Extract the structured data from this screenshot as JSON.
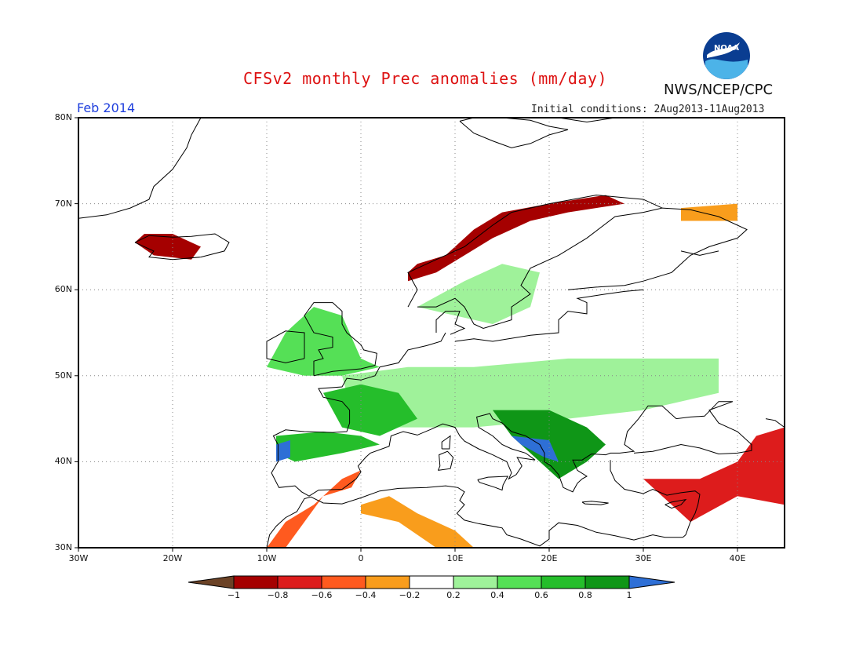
{
  "header": {
    "title": "CFSv2 monthly Prec anomalies (mm/day)",
    "org": "NWS/NCEP/CPC",
    "month": "Feb 2014",
    "init_conditions": "Initial conditions: 2Aug2013-11Aug2013",
    "logo_text": "NOAA"
  },
  "axes": {
    "lat_labels": [
      "80N",
      "70N",
      "60N",
      "50N",
      "40N",
      "30N"
    ],
    "lon_labels": [
      "30W",
      "20W",
      "10W",
      "0",
      "10E",
      "20E",
      "30E",
      "40E"
    ]
  },
  "colorbar": {
    "labels": [
      "-1",
      "-0.8",
      "-0.6",
      "-0.4",
      "-0.2",
      "0.2",
      "0.4",
      "0.6",
      "0.8",
      "1"
    ],
    "colors": [
      "#6b4226",
      "#a50000",
      "#dd1c1c",
      "#ff5a1f",
      "#f99d1c",
      "#ffffff",
      "#9ff29a",
      "#55e056",
      "#25be2b",
      "#0f9617",
      "#2e6fd6"
    ]
  },
  "map_data": {
    "extent": {
      "lon": [
        -30,
        45
      ],
      "lat": [
        30,
        80
      ]
    },
    "anomaly_regions": [
      {
        "name": "norway-coast",
        "level": "-1 to -0.6",
        "polygon": [
          [
            5,
            61
          ],
          [
            8,
            62
          ],
          [
            11,
            64
          ],
          [
            14,
            66
          ],
          [
            18,
            68
          ],
          [
            22,
            69
          ],
          [
            28,
            70
          ],
          [
            26,
            71
          ],
          [
            20,
            70
          ],
          [
            15,
            69
          ],
          [
            12,
            67
          ],
          [
            9,
            64
          ],
          [
            6,
            63
          ],
          [
            5,
            62
          ]
        ]
      },
      {
        "name": "iceland",
        "level": "-0.8",
        "polygon": [
          [
            -24,
            65.5
          ],
          [
            -22,
            64
          ],
          [
            -18,
            63.5
          ],
          [
            -17,
            65
          ],
          [
            -20,
            66.5
          ],
          [
            -23,
            66.5
          ]
        ]
      },
      {
        "name": "northern-russia",
        "level": "-0.4",
        "polygon": [
          [
            34,
            68
          ],
          [
            40,
            68
          ],
          [
            40,
            70
          ],
          [
            34,
            69.5
          ]
        ]
      },
      {
        "name": "iberia-morocco",
        "level": "-0.6 to -0.4",
        "polygon": [
          [
            -8,
            30
          ],
          [
            -6,
            33
          ],
          [
            -4,
            36
          ],
          [
            -1,
            37
          ],
          [
            0,
            39
          ],
          [
            -2,
            38
          ],
          [
            -5,
            35
          ],
          [
            -8,
            33
          ],
          [
            -10,
            30
          ]
        ]
      },
      {
        "name": "north-africa-coast",
        "level": "-0.4",
        "polygon": [
          [
            0,
            35
          ],
          [
            3,
            36
          ],
          [
            6,
            34
          ],
          [
            10,
            32
          ],
          [
            12,
            30
          ],
          [
            8,
            30
          ],
          [
            4,
            33
          ],
          [
            0,
            34
          ]
        ]
      },
      {
        "name": "turkey-caucasus",
        "level": "-0.8 to -0.4",
        "polygon": [
          [
            30,
            38
          ],
          [
            36,
            38
          ],
          [
            40,
            40
          ],
          [
            42,
            43
          ],
          [
            45,
            44
          ],
          [
            45,
            35
          ],
          [
            40,
            36
          ],
          [
            35,
            33
          ],
          [
            32,
            36
          ]
        ]
      },
      {
        "name": "scandinavia-south",
        "level": "0.2",
        "polygon": [
          [
            6,
            58
          ],
          [
            10,
            57
          ],
          [
            14,
            56
          ],
          [
            18,
            58
          ],
          [
            19,
            62
          ],
          [
            15,
            63
          ],
          [
            11,
            61
          ]
        ]
      },
      {
        "name": "british-isles",
        "level": "0.4 to 0.6",
        "polygon": [
          [
            -10,
            51
          ],
          [
            -8,
            55
          ],
          [
            -5,
            58
          ],
          [
            -2,
            57
          ],
          [
            0,
            52
          ],
          [
            2,
            51
          ],
          [
            -2,
            50
          ],
          [
            -6,
            50
          ]
        ]
      },
      {
        "name": "central-europe",
        "level": "0.2 to 0.4",
        "polygon": [
          [
            -2,
            50
          ],
          [
            5,
            51
          ],
          [
            12,
            51
          ],
          [
            22,
            52
          ],
          [
            30,
            52
          ],
          [
            38,
            52
          ],
          [
            38,
            48
          ],
          [
            30,
            46
          ],
          [
            22,
            45
          ],
          [
            12,
            44
          ],
          [
            4,
            44
          ],
          [
            -1,
            46
          ]
        ]
      },
      {
        "name": "france-west",
        "level": "0.6 to 0.8",
        "polygon": [
          [
            -4,
            48
          ],
          [
            0,
            49
          ],
          [
            4,
            48
          ],
          [
            6,
            45
          ],
          [
            2,
            43
          ],
          [
            -2,
            44
          ]
        ]
      },
      {
        "name": "iberia-north",
        "level": "0.4 to 0.8",
        "polygon": [
          [
            -9,
            43
          ],
          [
            -4,
            43.5
          ],
          [
            0,
            43
          ],
          [
            2,
            42
          ],
          [
            -2,
            41
          ],
          [
            -7,
            40
          ],
          [
            -9,
            41
          ]
        ]
      },
      {
        "name": "balkans",
        "level": "0.6 to 1",
        "polygon": [
          [
            14,
            46
          ],
          [
            20,
            46
          ],
          [
            24,
            44
          ],
          [
            26,
            42
          ],
          [
            24,
            40
          ],
          [
            21,
            38
          ],
          [
            19,
            40
          ],
          [
            16,
            43
          ]
        ]
      },
      {
        "name": "portugal-wet",
        "level": "> 1",
        "polygon": [
          [
            -9,
            42
          ],
          [
            -7.5,
            42.5
          ],
          [
            -7.5,
            40.5
          ],
          [
            -9,
            40
          ]
        ]
      },
      {
        "name": "adriatic-wet",
        "level": "> 1",
        "polygon": [
          [
            16,
            43
          ],
          [
            20,
            42.5
          ],
          [
            21,
            40
          ],
          [
            19.5,
            40.5
          ],
          [
            17,
            42
          ]
        ]
      }
    ]
  }
}
